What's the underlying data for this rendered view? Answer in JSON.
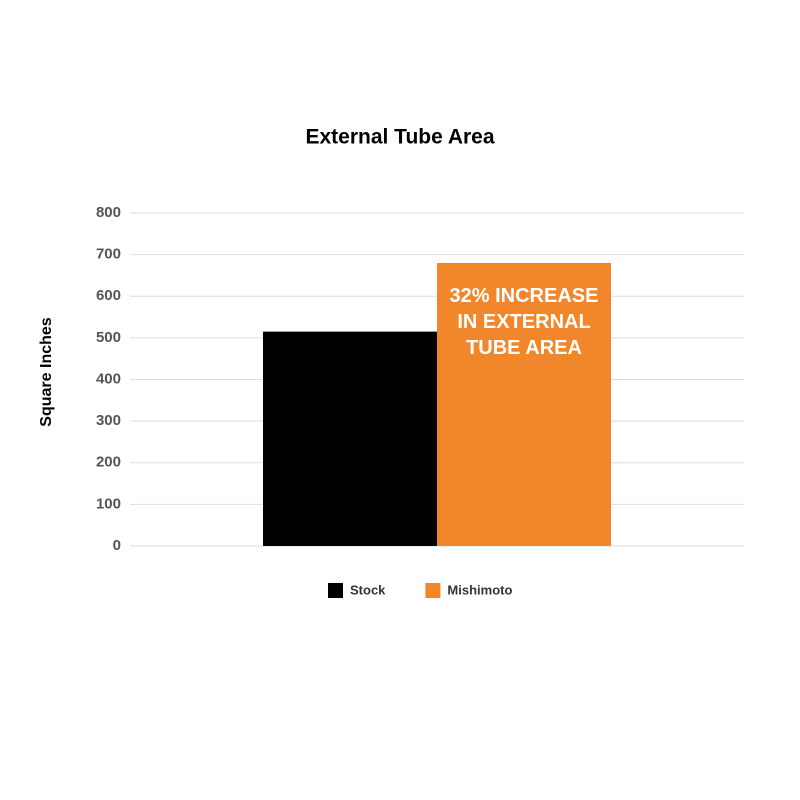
{
  "chart_data": {
    "type": "bar",
    "title": "External Tube Area",
    "y_label": "Square Inches",
    "categories": [
      null
    ],
    "series": [
      {
        "name": "Stock",
        "color": "#000000",
        "values": [
          515
        ]
      },
      {
        "name": "Mishimoto",
        "color": "#f2862a",
        "values": [
          680
        ]
      }
    ],
    "annotation": [
      "32% INCREASE",
      "IN EXTERNAL",
      "TUBE AREA"
    ],
    "ylim": [
      0,
      800
    ],
    "yticks": [
      0,
      100,
      200,
      300,
      400,
      500,
      600,
      700,
      800
    ],
    "grid": true
  }
}
